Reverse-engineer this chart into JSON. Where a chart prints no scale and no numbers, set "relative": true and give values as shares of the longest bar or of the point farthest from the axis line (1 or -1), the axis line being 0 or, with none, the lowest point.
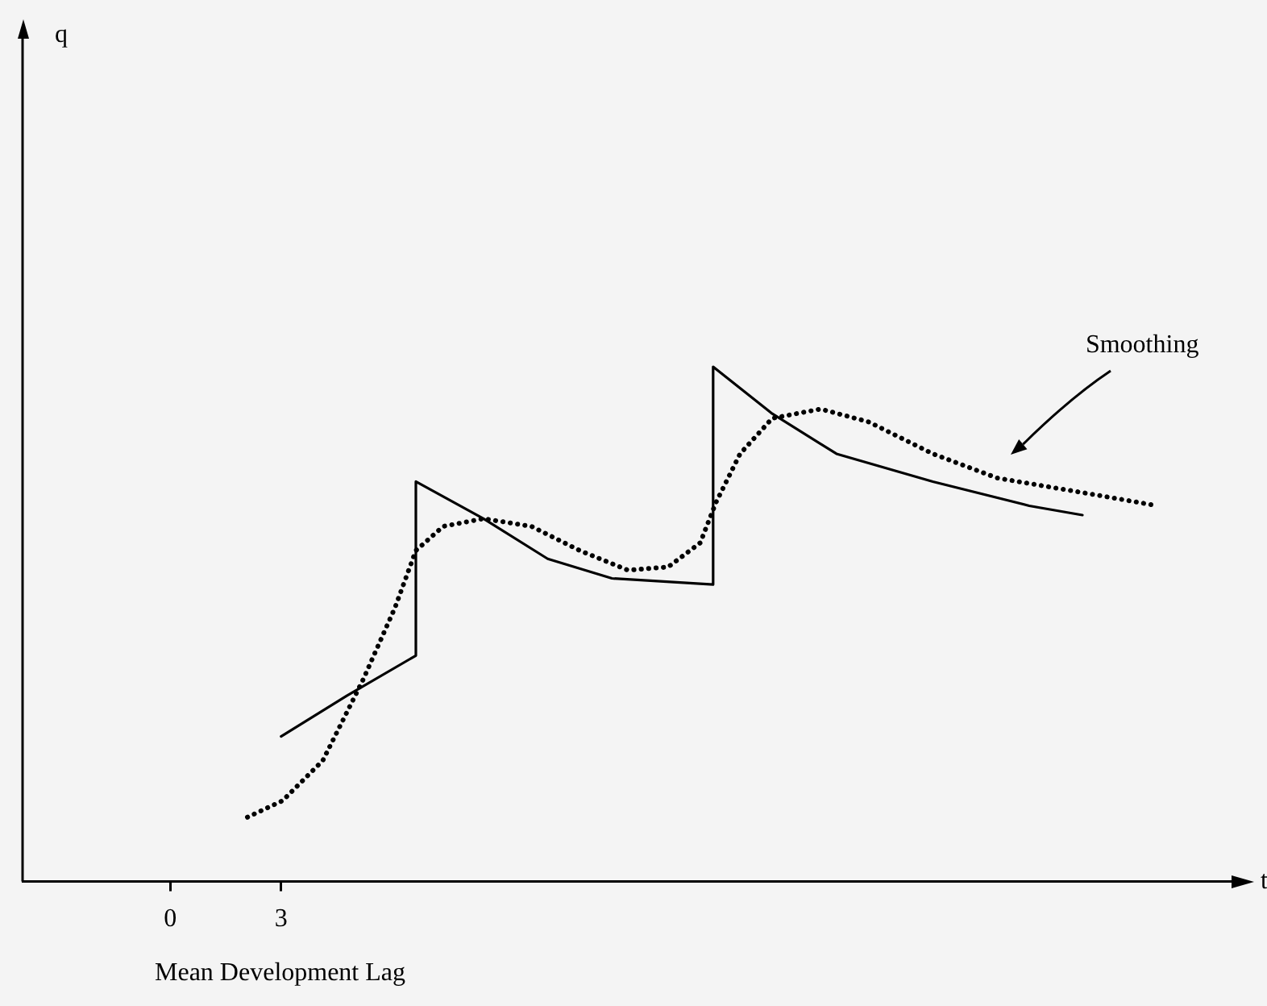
{
  "chart_data": {
    "type": "line",
    "relative": true,
    "xlabel": "t",
    "xlim": [
      -4,
      29
    ],
    "xticks": [
      0,
      3
    ],
    "grid": false,
    "legend": false,
    "marker": "none",
    "annotations": [
      "q",
      "Mean Development Lag"
    ],
    "series": [
      {
        "color": "#000000",
        "line_style": "solid",
        "x": [
          3.0,
          4.78,
          6.65,
          6.65,
          8.48,
          10.22,
          11.96,
          14.7,
          14.7,
          16.3,
          18.04,
          20.65,
          23.26,
          24.7
        ],
        "values": [
          0.282,
          0.361,
          0.439,
          0.777,
          0.705,
          0.627,
          0.589,
          0.577,
          1,
          0.909,
          0.831,
          0.777,
          0.73,
          0.712
        ]
      },
      {
        "name": "Smoothing",
        "color": "#000000",
        "line_style": "dotted",
        "x": [
          2.09,
          3.04,
          4.13,
          5.22,
          6.09,
          6.65,
          7.39,
          8.48,
          9.78,
          11.09,
          12.39,
          13.48,
          14.35,
          14.78,
          15.43,
          16.3,
          17.61,
          18.91,
          20.65,
          22.39,
          25,
          26.74
        ],
        "values": [
          0.125,
          0.157,
          0.235,
          0.392,
          0.533,
          0.643,
          0.69,
          0.705,
          0.69,
          0.643,
          0.605,
          0.611,
          0.658,
          0.737,
          0.831,
          0.9,
          0.918,
          0.893,
          0.831,
          0.784,
          0.752,
          0.73
        ]
      }
    ]
  }
}
